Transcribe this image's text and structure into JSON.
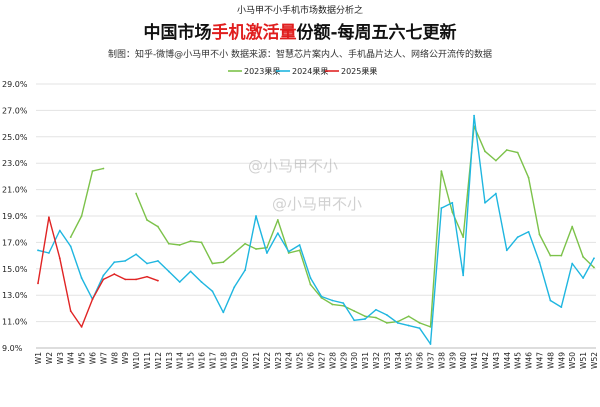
{
  "header": {
    "topline": "小马甲不小手机市场数据分析之",
    "title_pre": "中国市场",
    "title_highlight": "手机激活量",
    "title_post": "份额-每周五六七更新",
    "subtitle": "制图：知乎-微博@小马甲不小   数据来源：智慧芯片案内人、手机晶片达人、网络公开流传的数据"
  },
  "watermark": {
    "line1": "@小马甲不小",
    "line2": "@小马甲不小"
  },
  "chart_data": {
    "type": "line",
    "x": [
      "W1",
      "W2",
      "W3",
      "W4",
      "W5",
      "W6",
      "W7",
      "W8",
      "W9",
      "W10",
      "W11",
      "W12",
      "W13",
      "W14",
      "W15",
      "W16",
      "W17",
      "W18",
      "W19",
      "W20",
      "W21",
      "W22",
      "W23",
      "W24",
      "W25",
      "W26",
      "W27",
      "W28",
      "W29",
      "W30",
      "W31",
      "W32",
      "W33",
      "W34",
      "W35",
      "W36",
      "W37",
      "W38",
      "W39",
      "W40",
      "W41",
      "W42",
      "W43",
      "W44",
      "W45",
      "W46",
      "W47",
      "W48",
      "W49",
      "W50",
      "W51",
      "W52"
    ],
    "ylim": [
      9.0,
      29.0
    ],
    "yticks": [
      "29.0%",
      "27.0%",
      "25.0%",
      "23.0%",
      "21.0%",
      "19.0%",
      "17.0%",
      "15.0%",
      "13.0%",
      "11.0%",
      "9.0%"
    ],
    "ytick_values": [
      29,
      27,
      25,
      23,
      21,
      19,
      17,
      15,
      13,
      11,
      9
    ],
    "legend_position": "top",
    "series": [
      {
        "name": "2023果果",
        "color": "#7cc24a",
        "values": [
          null,
          null,
          null,
          17.4,
          19.0,
          22.4,
          22.6,
          null,
          null,
          20.7,
          18.7,
          18.2,
          16.9,
          16.8,
          17.1,
          17.0,
          15.4,
          15.5,
          16.2,
          16.9,
          16.5,
          16.6,
          18.7,
          16.2,
          16.4,
          13.8,
          12.8,
          12.3,
          12.2,
          11.8,
          11.4,
          11.3,
          10.9,
          11.0,
          11.4,
          10.9,
          10.6,
          22.4,
          19.3,
          17.4,
          25.8,
          23.9,
          23.2,
          24.0,
          23.8,
          21.9,
          17.6,
          16.0,
          16.0,
          18.2,
          15.9,
          15.1
        ]
      },
      {
        "name": "2024果果",
        "color": "#1fb6e0",
        "values": [
          16.4,
          16.2,
          17.9,
          16.7,
          14.3,
          12.7,
          14.5,
          15.5,
          15.6,
          16.1,
          15.4,
          15.6,
          14.8,
          14.0,
          14.8,
          14.0,
          13.3,
          11.7,
          13.6,
          14.9,
          19.0,
          16.2,
          17.7,
          16.3,
          16.8,
          14.3,
          12.9,
          12.6,
          12.4,
          11.1,
          11.2,
          11.9,
          11.5,
          10.9,
          10.7,
          10.5,
          9.3,
          19.6,
          20.0,
          14.5,
          26.6,
          20.0,
          20.7,
          16.4,
          17.4,
          17.8,
          15.5,
          12.6,
          12.1,
          15.4,
          14.3,
          15.8
        ]
      },
      {
        "name": "2025果果",
        "color": "#e02424",
        "values": [
          13.9,
          18.9,
          15.8,
          11.8,
          10.6,
          12.7,
          14.2,
          14.6,
          14.2,
          14.2,
          14.4,
          14.1,
          null,
          null,
          null,
          null,
          null,
          null,
          null,
          null,
          null,
          null,
          null,
          null,
          null,
          null,
          null,
          null,
          null,
          null,
          null,
          null,
          null,
          null,
          null,
          null,
          null,
          null,
          null,
          null,
          null,
          null,
          null,
          null,
          null,
          null,
          null,
          null,
          null,
          null,
          null,
          null
        ]
      }
    ]
  }
}
